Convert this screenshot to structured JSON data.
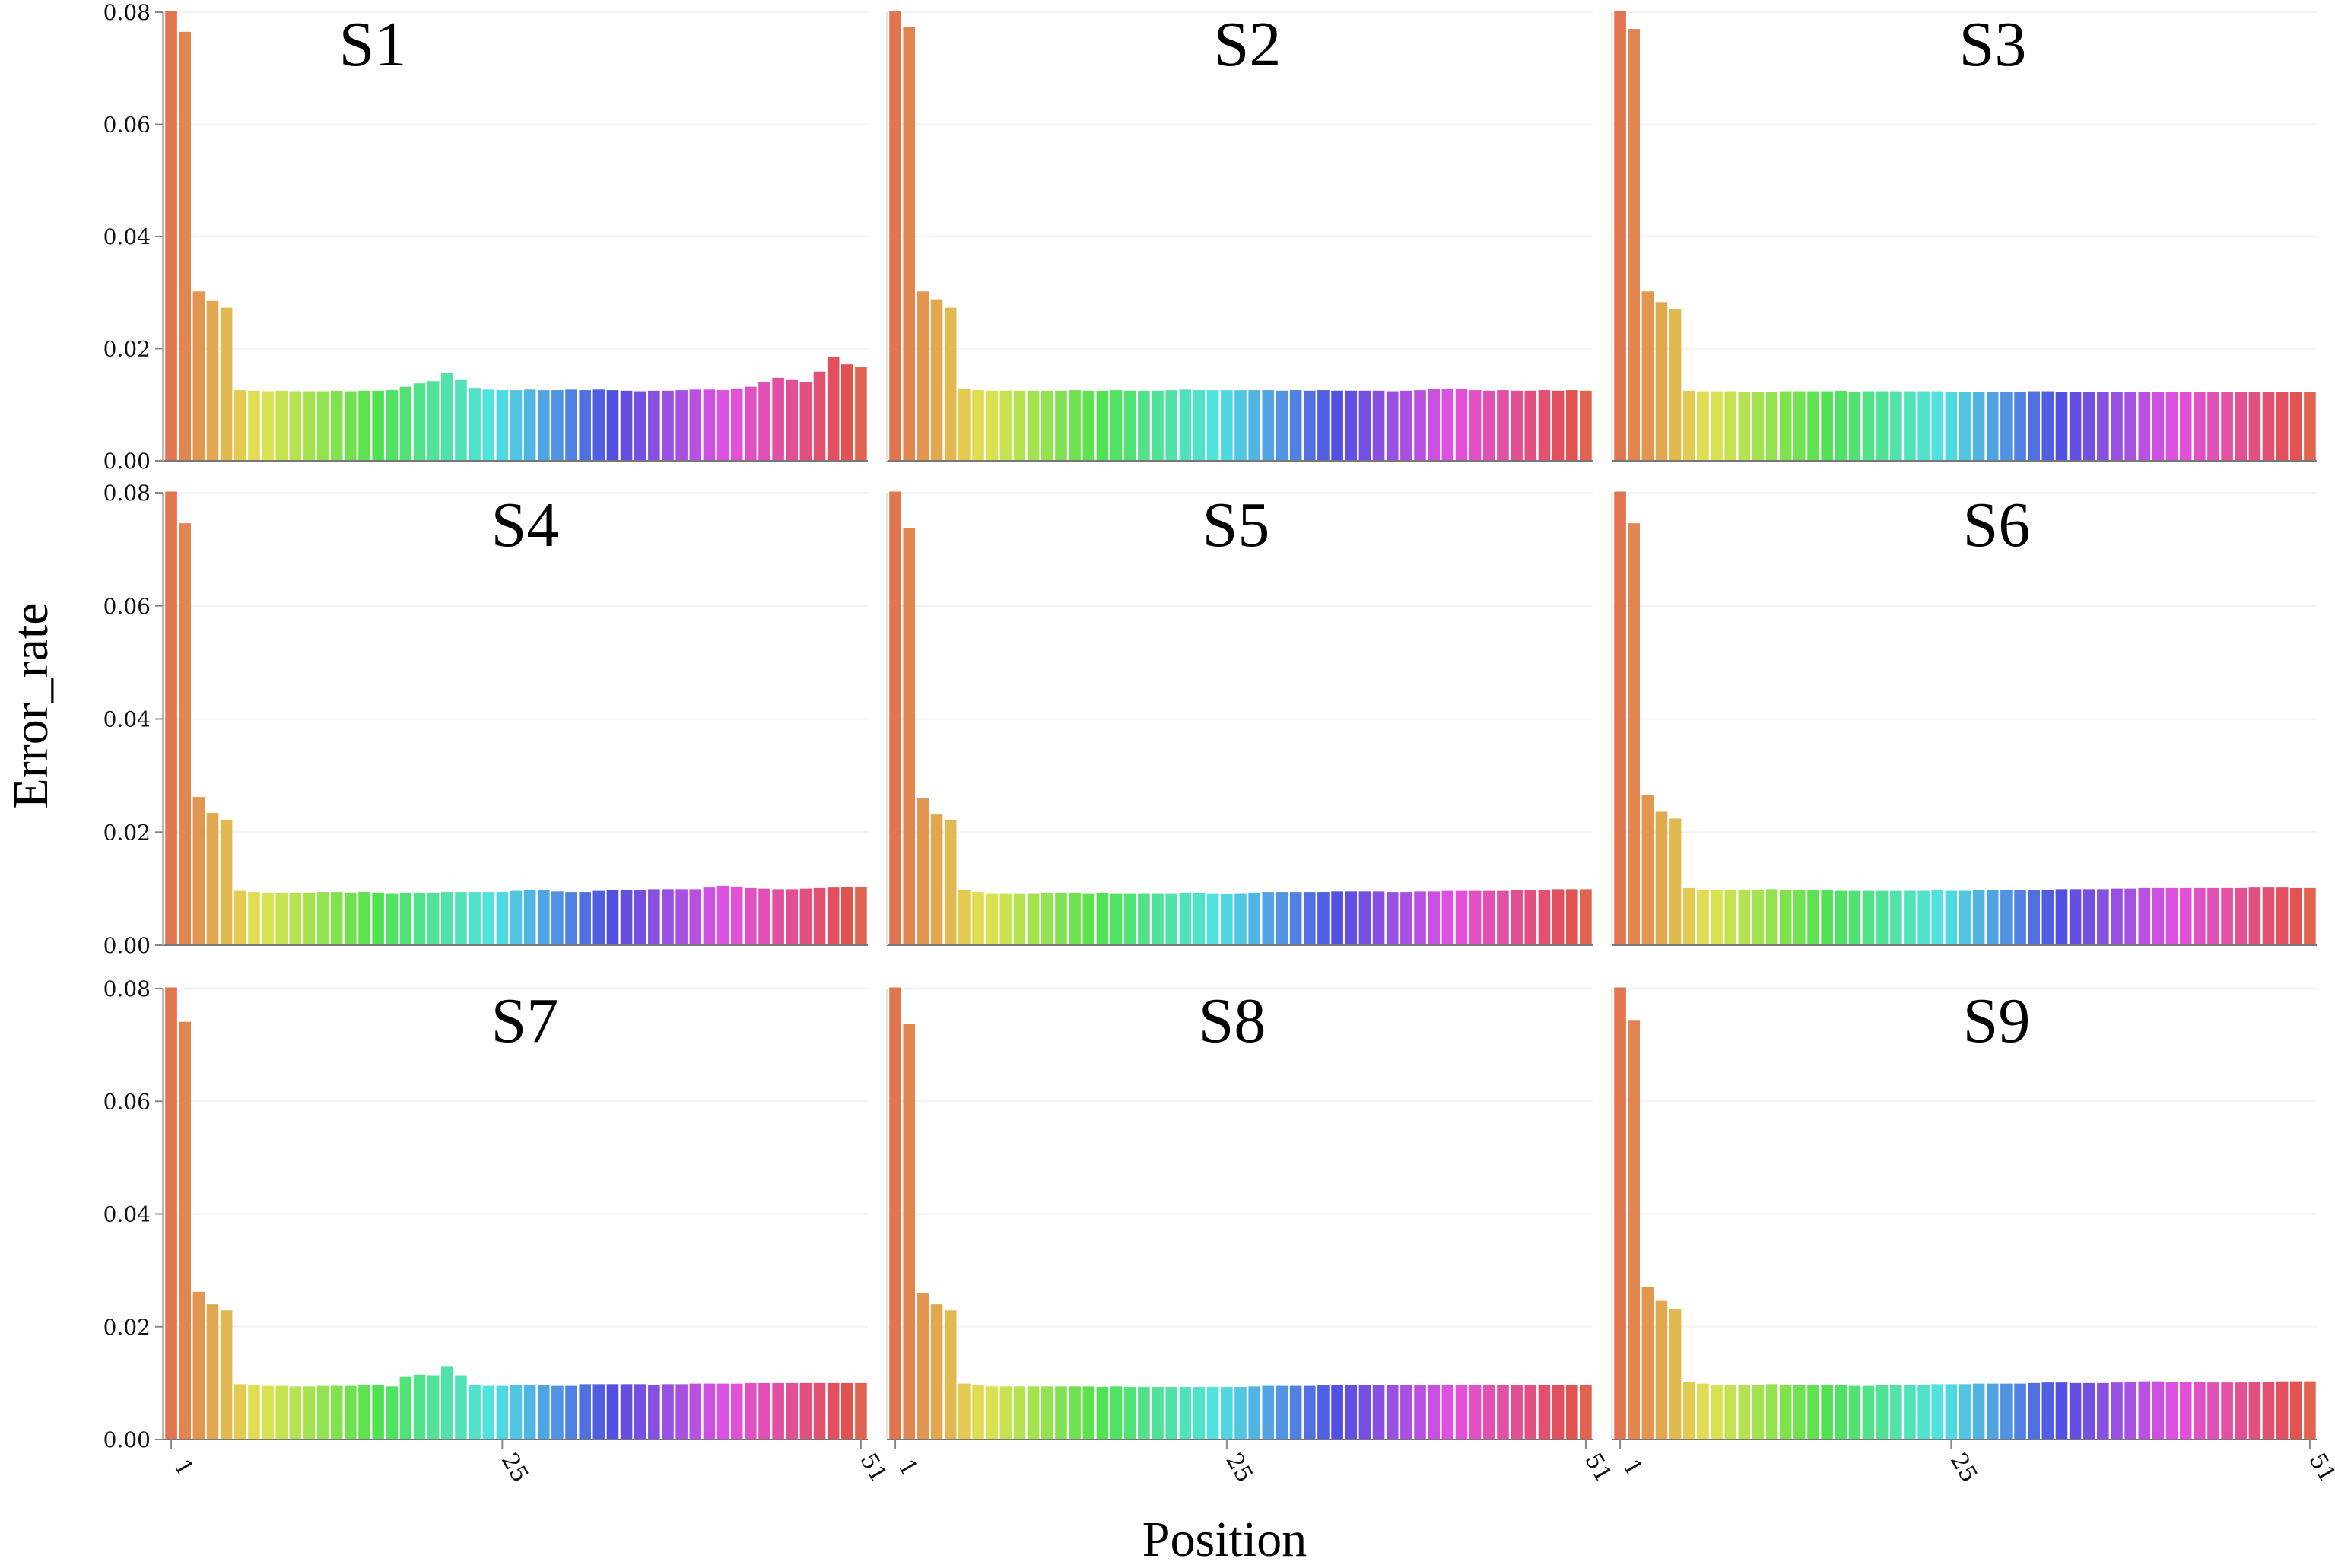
{
  "chart_data": {
    "type": "bar",
    "xlabel": "Position",
    "ylabel": "Error_rate",
    "ylim": [
      0,
      0.08
    ],
    "yticks": [
      0,
      0.02,
      0.04,
      0.06,
      0.08
    ],
    "ytick_labels": [
      "0.00",
      "0.02",
      "0.04",
      "0.06",
      "0.08"
    ],
    "xticks": [
      1,
      25,
      51
    ],
    "xtick_labels": [
      "1",
      "25",
      "51"
    ],
    "positions": 51,
    "panels": [
      {
        "name": "S1",
        "values": [
          0.0802,
          0.0765,
          0.0302,
          0.0285,
          0.0273,
          0.0126,
          0.0125,
          0.0124,
          0.0125,
          0.0124,
          0.0124,
          0.0124,
          0.0125,
          0.0124,
          0.0125,
          0.0125,
          0.0126,
          0.0132,
          0.0138,
          0.0142,
          0.0156,
          0.0144,
          0.013,
          0.0127,
          0.0126,
          0.0126,
          0.0127,
          0.0126,
          0.0126,
          0.0127,
          0.0126,
          0.0127,
          0.0126,
          0.0125,
          0.0124,
          0.0125,
          0.0125,
          0.0126,
          0.0127,
          0.0127,
          0.0126,
          0.0129,
          0.0132,
          0.014,
          0.0148,
          0.0144,
          0.014,
          0.0159,
          0.0185,
          0.0172,
          0.0168
        ]
      },
      {
        "name": "S2",
        "values": [
          0.0802,
          0.0773,
          0.0302,
          0.0288,
          0.0273,
          0.0128,
          0.0126,
          0.0125,
          0.0125,
          0.0125,
          0.0125,
          0.0125,
          0.0125,
          0.0126,
          0.0125,
          0.0125,
          0.0126,
          0.0125,
          0.0125,
          0.0125,
          0.0126,
          0.0127,
          0.0126,
          0.0126,
          0.0126,
          0.0126,
          0.0126,
          0.0126,
          0.0125,
          0.0126,
          0.0125,
          0.0126,
          0.0125,
          0.0125,
          0.0125,
          0.0125,
          0.0124,
          0.0125,
          0.0126,
          0.0128,
          0.0128,
          0.0128,
          0.0126,
          0.0125,
          0.0126,
          0.0125,
          0.0125,
          0.0126,
          0.0125,
          0.0126,
          0.0125
        ]
      },
      {
        "name": "S3",
        "values": [
          0.0802,
          0.077,
          0.0302,
          0.0283,
          0.027,
          0.0125,
          0.0124,
          0.0124,
          0.0124,
          0.0123,
          0.0123,
          0.0123,
          0.0124,
          0.0124,
          0.0124,
          0.0124,
          0.0125,
          0.0123,
          0.0124,
          0.0124,
          0.0124,
          0.0124,
          0.0124,
          0.0124,
          0.0123,
          0.0122,
          0.0123,
          0.0123,
          0.0123,
          0.0123,
          0.0124,
          0.0124,
          0.0123,
          0.0123,
          0.0123,
          0.0122,
          0.0122,
          0.0122,
          0.0122,
          0.0123,
          0.0123,
          0.0122,
          0.0122,
          0.0122,
          0.0123,
          0.0122,
          0.0122,
          0.0122,
          0.0122,
          0.0122,
          0.0122
        ]
      },
      {
        "name": "S4",
        "values": [
          0.0802,
          0.0746,
          0.0262,
          0.0234,
          0.0222,
          0.0096,
          0.0094,
          0.0093,
          0.0093,
          0.0093,
          0.0093,
          0.0094,
          0.0094,
          0.0093,
          0.0094,
          0.0093,
          0.0092,
          0.0093,
          0.0093,
          0.0093,
          0.0094,
          0.0094,
          0.0094,
          0.0094,
          0.0094,
          0.0096,
          0.0097,
          0.0097,
          0.0095,
          0.0094,
          0.0094,
          0.0096,
          0.0097,
          0.0098,
          0.0098,
          0.0099,
          0.0099,
          0.0099,
          0.0099,
          0.0102,
          0.0105,
          0.0103,
          0.0101,
          0.01,
          0.0099,
          0.0099,
          0.01,
          0.0101,
          0.0102,
          0.0103,
          0.0103
        ]
      },
      {
        "name": "S5",
        "values": [
          0.0802,
          0.0738,
          0.026,
          0.0231,
          0.0222,
          0.0097,
          0.0094,
          0.0092,
          0.0092,
          0.0092,
          0.0092,
          0.0093,
          0.0093,
          0.0093,
          0.0092,
          0.0093,
          0.0092,
          0.0092,
          0.0092,
          0.0092,
          0.0092,
          0.0093,
          0.0093,
          0.0092,
          0.0091,
          0.0092,
          0.0093,
          0.0094,
          0.0094,
          0.0094,
          0.0094,
          0.0094,
          0.0095,
          0.0095,
          0.0095,
          0.0095,
          0.0094,
          0.0094,
          0.0095,
          0.0095,
          0.0096,
          0.0096,
          0.0096,
          0.0096,
          0.0096,
          0.0097,
          0.0097,
          0.0098,
          0.0099,
          0.0099,
          0.0099
        ]
      },
      {
        "name": "S6",
        "values": [
          0.0802,
          0.0746,
          0.0265,
          0.0236,
          0.0224,
          0.0101,
          0.0098,
          0.0097,
          0.0097,
          0.0097,
          0.0098,
          0.0099,
          0.0098,
          0.0098,
          0.0098,
          0.0097,
          0.0096,
          0.0096,
          0.0096,
          0.0096,
          0.0096,
          0.0096,
          0.0096,
          0.0097,
          0.0096,
          0.0096,
          0.0097,
          0.0098,
          0.0098,
          0.0098,
          0.0098,
          0.0098,
          0.0099,
          0.0099,
          0.0099,
          0.0099,
          0.01,
          0.01,
          0.0101,
          0.0101,
          0.0101,
          0.0101,
          0.0101,
          0.0101,
          0.0101,
          0.0101,
          0.0102,
          0.0102,
          0.0102,
          0.0101,
          0.0101
        ]
      },
      {
        "name": "S7",
        "values": [
          0.0802,
          0.0741,
          0.0262,
          0.024,
          0.0229,
          0.0098,
          0.0096,
          0.0095,
          0.0095,
          0.0094,
          0.0094,
          0.0095,
          0.0095,
          0.0095,
          0.0096,
          0.0096,
          0.0094,
          0.0111,
          0.0115,
          0.0114,
          0.0129,
          0.0114,
          0.0097,
          0.0095,
          0.0095,
          0.0096,
          0.0096,
          0.0096,
          0.0095,
          0.0095,
          0.0098,
          0.0098,
          0.0098,
          0.0098,
          0.0098,
          0.0097,
          0.0098,
          0.0098,
          0.0099,
          0.0099,
          0.0099,
          0.0099,
          0.01,
          0.01,
          0.01,
          0.01,
          0.01,
          0.01,
          0.01,
          0.01,
          0.01
        ]
      },
      {
        "name": "S8",
        "values": [
          0.0802,
          0.0738,
          0.026,
          0.024,
          0.0229,
          0.0099,
          0.0096,
          0.0094,
          0.0094,
          0.0094,
          0.0094,
          0.0094,
          0.0094,
          0.0094,
          0.0094,
          0.0093,
          0.0094,
          0.0093,
          0.0093,
          0.0093,
          0.0093,
          0.0093,
          0.0093,
          0.0093,
          0.0093,
          0.0093,
          0.0094,
          0.0095,
          0.0095,
          0.0095,
          0.0095,
          0.0096,
          0.0097,
          0.0096,
          0.0096,
          0.0096,
          0.0096,
          0.0096,
          0.0096,
          0.0096,
          0.0096,
          0.0096,
          0.0097,
          0.0097,
          0.0097,
          0.0097,
          0.0097,
          0.0097,
          0.0097,
          0.0097,
          0.0097
        ]
      },
      {
        "name": "S9",
        "values": [
          0.0802,
          0.0743,
          0.027,
          0.0246,
          0.0232,
          0.0102,
          0.0099,
          0.0097,
          0.0097,
          0.0097,
          0.0097,
          0.0098,
          0.0097,
          0.0096,
          0.0096,
          0.0096,
          0.0096,
          0.0095,
          0.0095,
          0.0096,
          0.0097,
          0.0097,
          0.0097,
          0.0098,
          0.0098,
          0.0098,
          0.0099,
          0.0099,
          0.0099,
          0.0099,
          0.01,
          0.0101,
          0.0101,
          0.01,
          0.01,
          0.01,
          0.0101,
          0.0102,
          0.0103,
          0.0103,
          0.0102,
          0.0102,
          0.0102,
          0.0101,
          0.0101,
          0.0101,
          0.0102,
          0.0102,
          0.0103,
          0.0103,
          0.0103
        ]
      }
    ]
  }
}
